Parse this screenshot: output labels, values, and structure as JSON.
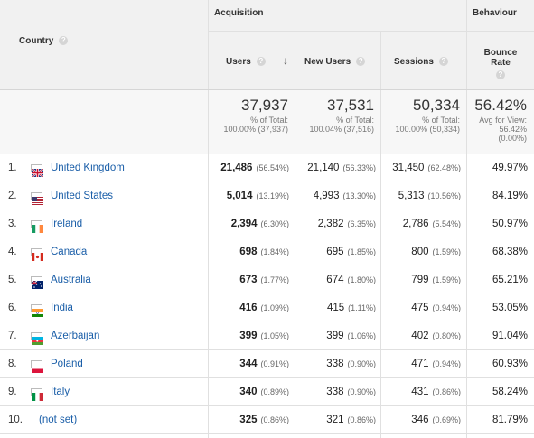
{
  "header": {
    "country_label": "Country",
    "acquisition_label": "Acquisition",
    "behaviour_label": "Behaviour",
    "columns": {
      "users": "Users",
      "new_users": "New Users",
      "sessions": "Sessions",
      "bounce_rate": "Bounce Rate"
    },
    "help_glyph": "?",
    "sort_glyph": "↓"
  },
  "totals": {
    "users": {
      "value": "37,937",
      "line1": "% of Total:",
      "line2": "100.00% (37,937)"
    },
    "new_users": {
      "value": "37,531",
      "line1": "% of Total:",
      "line2": "100.04% (37,516)"
    },
    "sessions": {
      "value": "50,334",
      "line1": "% of Total:",
      "line2": "100.00% (50,334)"
    },
    "bounce_rate": {
      "value": "56.42%",
      "line1": "Avg for View:",
      "line2": "56.42%",
      "line3": "(0.00%)"
    }
  },
  "rows": [
    {
      "index": "1.",
      "country": "United Kingdom",
      "flag": "gb",
      "users": "21,486",
      "users_pct": "(56.54%)",
      "new_users": "21,140",
      "new_users_pct": "(56.33%)",
      "sessions": "31,450",
      "sessions_pct": "(62.48%)",
      "bounce_rate": "49.97%"
    },
    {
      "index": "2.",
      "country": "United States",
      "flag": "us",
      "users": "5,014",
      "users_pct": "(13.19%)",
      "new_users": "4,993",
      "new_users_pct": "(13.30%)",
      "sessions": "5,313",
      "sessions_pct": "(10.56%)",
      "bounce_rate": "84.19%"
    },
    {
      "index": "3.",
      "country": "Ireland",
      "flag": "ie",
      "users": "2,394",
      "users_pct": "(6.30%)",
      "new_users": "2,382",
      "new_users_pct": "(6.35%)",
      "sessions": "2,786",
      "sessions_pct": "(5.54%)",
      "bounce_rate": "50.97%"
    },
    {
      "index": "4.",
      "country": "Canada",
      "flag": "ca",
      "users": "698",
      "users_pct": "(1.84%)",
      "new_users": "695",
      "new_users_pct": "(1.85%)",
      "sessions": "800",
      "sessions_pct": "(1.59%)",
      "bounce_rate": "68.38%"
    },
    {
      "index": "5.",
      "country": "Australia",
      "flag": "au",
      "users": "673",
      "users_pct": "(1.77%)",
      "new_users": "674",
      "new_users_pct": "(1.80%)",
      "sessions": "799",
      "sessions_pct": "(1.59%)",
      "bounce_rate": "65.21%"
    },
    {
      "index": "6.",
      "country": "India",
      "flag": "in",
      "users": "416",
      "users_pct": "(1.09%)",
      "new_users": "415",
      "new_users_pct": "(1.11%)",
      "sessions": "475",
      "sessions_pct": "(0.94%)",
      "bounce_rate": "53.05%"
    },
    {
      "index": "7.",
      "country": "Azerbaijan",
      "flag": "az",
      "users": "399",
      "users_pct": "(1.05%)",
      "new_users": "399",
      "new_users_pct": "(1.06%)",
      "sessions": "402",
      "sessions_pct": "(0.80%)",
      "bounce_rate": "91.04%"
    },
    {
      "index": "8.",
      "country": "Poland",
      "flag": "pl",
      "users": "344",
      "users_pct": "(0.91%)",
      "new_users": "338",
      "new_users_pct": "(0.90%)",
      "sessions": "471",
      "sessions_pct": "(0.94%)",
      "bounce_rate": "60.93%"
    },
    {
      "index": "9.",
      "country": "Italy",
      "flag": "it",
      "users": "340",
      "users_pct": "(0.89%)",
      "new_users": "338",
      "new_users_pct": "(0.90%)",
      "sessions": "431",
      "sessions_pct": "(0.86%)",
      "bounce_rate": "58.24%"
    },
    {
      "index": "10.",
      "country": "(not set)",
      "flag": "",
      "users": "325",
      "users_pct": "(0.86%)",
      "new_users": "321",
      "new_users_pct": "(0.86%)",
      "sessions": "346",
      "sessions_pct": "(0.69%)",
      "bounce_rate": "81.79%"
    }
  ],
  "colors": {
    "link": "#1a5ea8",
    "header_bg": "#f1f1f1",
    "totals_bg": "#f7f7f7",
    "grid": "#e0e0e0"
  }
}
